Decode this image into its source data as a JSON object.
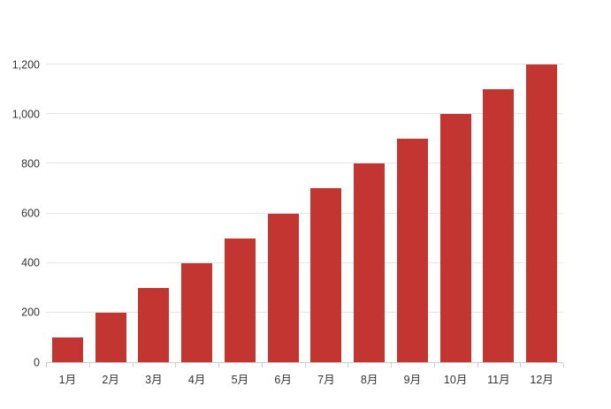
{
  "chart_data": {
    "type": "bar",
    "title": "",
    "categories": [
      "1月",
      "2月",
      "3月",
      "4月",
      "5月",
      "6月",
      "7月",
      "8月",
      "9月",
      "10月",
      "11月",
      "12月"
    ],
    "values": [
      100,
      200,
      300,
      400,
      500,
      600,
      700,
      800,
      900,
      1000,
      1100,
      1200
    ],
    "xlabel": "",
    "ylabel": "",
    "ylim": [
      0,
      1200
    ],
    "y_ticks": [
      0,
      200,
      400,
      600,
      800,
      1000,
      1200
    ],
    "y_tick_labels": [
      "0",
      "200",
      "400",
      "600",
      "800",
      "1,000",
      "1,200"
    ],
    "grid": true,
    "legend_position": "none",
    "bar_color": "#c23531",
    "background_color": "#ffffff",
    "gridline_color": "#e6e6e6",
    "axis_line_color": "#cccccc",
    "tick_label_color": "#333333"
  }
}
